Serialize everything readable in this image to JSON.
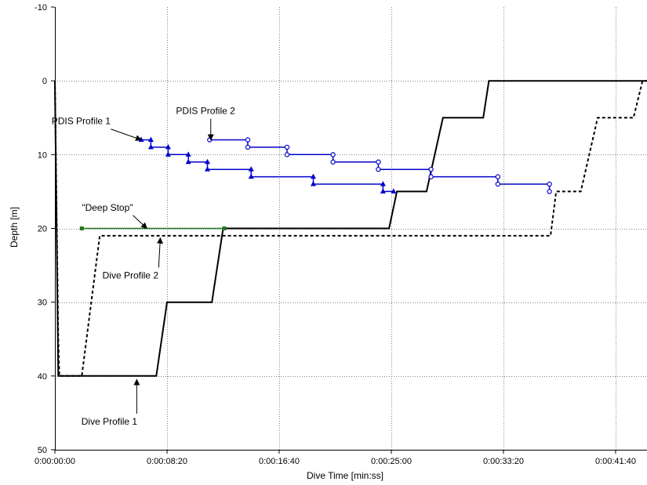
{
  "chart_data": {
    "type": "line",
    "xlabel": "Dive Time [min:ss]",
    "ylabel": "Depth [m]",
    "xlim": [
      0,
      2640
    ],
    "ylim": [
      50,
      -10
    ],
    "x_ticks": [
      {
        "value": 0,
        "label": "0:00:00:00"
      },
      {
        "value": 500,
        "label": "0:00:08:20"
      },
      {
        "value": 1000,
        "label": "0:00:16:40"
      },
      {
        "value": 1500,
        "label": "0:00:25:00"
      },
      {
        "value": 2000,
        "label": "0:00:33:20"
      },
      {
        "value": 2500,
        "label": "0:00:41:40"
      }
    ],
    "y_ticks": [
      {
        "value": -10,
        "label": "-10"
      },
      {
        "value": 0,
        "label": "0"
      },
      {
        "value": 10,
        "label": "10"
      },
      {
        "value": 20,
        "label": "20"
      },
      {
        "value": 30,
        "label": "30"
      },
      {
        "value": 40,
        "label": "40"
      },
      {
        "value": 50,
        "label": "50"
      }
    ],
    "grid": true,
    "series": [
      {
        "name": "Dive Profile 1",
        "color": "#000000",
        "style": "solid",
        "points": [
          [
            0,
            0
          ],
          [
            15,
            40
          ],
          [
            452,
            40
          ],
          [
            500,
            30
          ],
          [
            700,
            30
          ],
          [
            750,
            20
          ],
          [
            1490,
            20
          ],
          [
            1525,
            15
          ],
          [
            1657,
            15
          ],
          [
            1730,
            5
          ],
          [
            1910,
            5
          ],
          [
            1935,
            0
          ],
          [
            2640,
            0
          ]
        ]
      },
      {
        "name": "Dive Profile 2",
        "color": "#000000",
        "style": "dashed",
        "points": [
          [
            0,
            0
          ],
          [
            15,
            35
          ],
          [
            20,
            40
          ],
          [
            120,
            40
          ],
          [
            200,
            21
          ],
          [
            2210,
            21
          ],
          [
            2235,
            15
          ],
          [
            2345,
            15
          ],
          [
            2420,
            5
          ],
          [
            2580,
            5
          ],
          [
            2620,
            0
          ],
          [
            2640,
            0
          ]
        ]
      },
      {
        "name": "PDIS Profile 1",
        "color": "#0000cc",
        "style": "solid",
        "marker": "triangle",
        "points": [
          [
            385,
            8
          ],
          [
            428,
            8
          ],
          [
            428,
            9
          ],
          [
            505,
            9
          ],
          [
            505,
            10
          ],
          [
            595,
            10
          ],
          [
            595,
            11
          ],
          [
            680,
            11
          ],
          [
            680,
            12
          ],
          [
            875,
            12
          ],
          [
            875,
            13
          ],
          [
            1152,
            13
          ],
          [
            1152,
            14
          ],
          [
            1463,
            14
          ],
          [
            1463,
            15
          ],
          [
            1510,
            15
          ]
        ]
      },
      {
        "name": "PDIS Profile 2",
        "color": "#0000cc",
        "style": "solid",
        "marker": "circle",
        "points": [
          [
            690,
            8
          ],
          [
            860,
            8
          ],
          [
            860,
            9
          ],
          [
            1035,
            9
          ],
          [
            1035,
            10
          ],
          [
            1240,
            10
          ],
          [
            1240,
            11
          ],
          [
            1442,
            11
          ],
          [
            1442,
            12
          ],
          [
            1677,
            12
          ],
          [
            1677,
            13
          ],
          [
            1975,
            13
          ],
          [
            1975,
            14
          ],
          [
            2205,
            14
          ],
          [
            2205,
            15
          ]
        ]
      },
      {
        "name": "Deep Stop",
        "color": "#227722",
        "style": "solid",
        "marker": "square",
        "points": [
          [
            120,
            20
          ],
          [
            755,
            20
          ]
        ]
      }
    ],
    "annotations": [
      {
        "text": "PDIS Profile 1",
        "x": -15,
        "y": 5.9,
        "arrow_to": [
          385,
          8
        ]
      },
      {
        "text": "PDIS Profile 2",
        "x": 540,
        "y": 4.5,
        "arrow_to": [
          695,
          8
        ]
      },
      {
        "text": "\"Deep Stop\"",
        "x": 120,
        "y": 17.6,
        "arrow_to": [
          410,
          20
        ]
      },
      {
        "text": "Dive Profile 2",
        "x": 212,
        "y": 26.8,
        "arrow_to": [
          470,
          21.3
        ]
      },
      {
        "text": "Dive Profile 1",
        "x": 118,
        "y": 46.6,
        "arrow_to": [
          365,
          40.5
        ]
      }
    ]
  }
}
